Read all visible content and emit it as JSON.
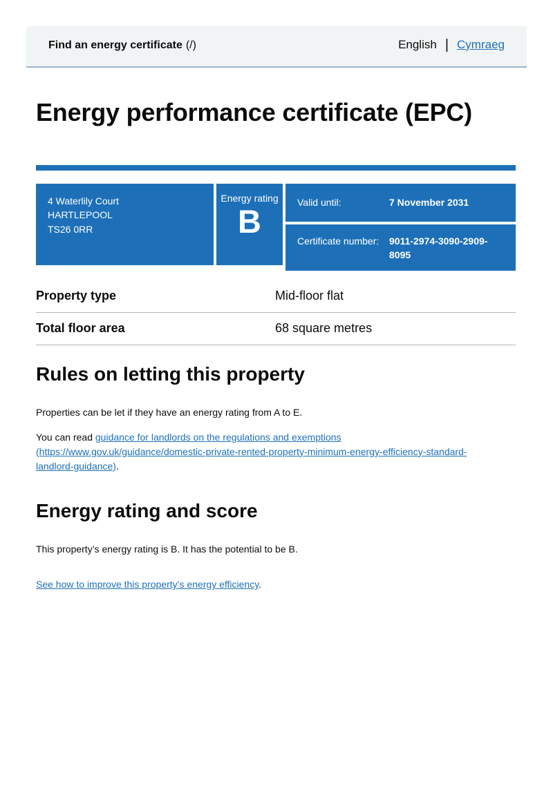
{
  "colors": {
    "accent_blue": "#1d70b8",
    "link_blue": "#1d70b8",
    "header_background": "#f0f4f5",
    "divider_grey": "#b1b4b6"
  },
  "header": {
    "service_name": "Find an energy certificate",
    "service_suffix": "(/)",
    "language_current": "English",
    "language_divider": "|",
    "language_link": "Cymraeg"
  },
  "page": {
    "title": "Energy performance certificate (EPC)"
  },
  "summary": {
    "address": {
      "line1": "4 Waterlily Court",
      "line2": "HARTLEPOOL",
      "line3": "TS26 0RR"
    },
    "rating": {
      "label": "Energy rating",
      "value": "B"
    },
    "valid_until": {
      "label": "Valid until:",
      "value": "7 November 2031"
    },
    "certificate_number": {
      "label": "Certificate number:",
      "value": "9011-2974-3090-2909-8095"
    }
  },
  "details": {
    "rows": [
      {
        "label": "Property type",
        "value": "Mid-floor flat"
      },
      {
        "label": "Total floor area",
        "value": "68 square metres"
      }
    ]
  },
  "sections": {
    "letting": {
      "heading": "Rules on letting this property",
      "intro": "Properties can be let if they have an energy rating from A to E.",
      "read_prefix": "You can read ",
      "guidance_link": "guidance for landlords on the regulations and exemptions (https://www.gov.uk/guidance/domestic-private-rented-property-minimum-energy-efficiency-standard-landlord-guidance)",
      "guidance_suffix": "."
    },
    "rating": {
      "heading": "Energy rating and score",
      "summary": "This property’s energy rating is B. It has the potential to be B.",
      "improvement_link": "See how to improve this property’s energy efficiency",
      "improvement_suffix": "."
    }
  }
}
